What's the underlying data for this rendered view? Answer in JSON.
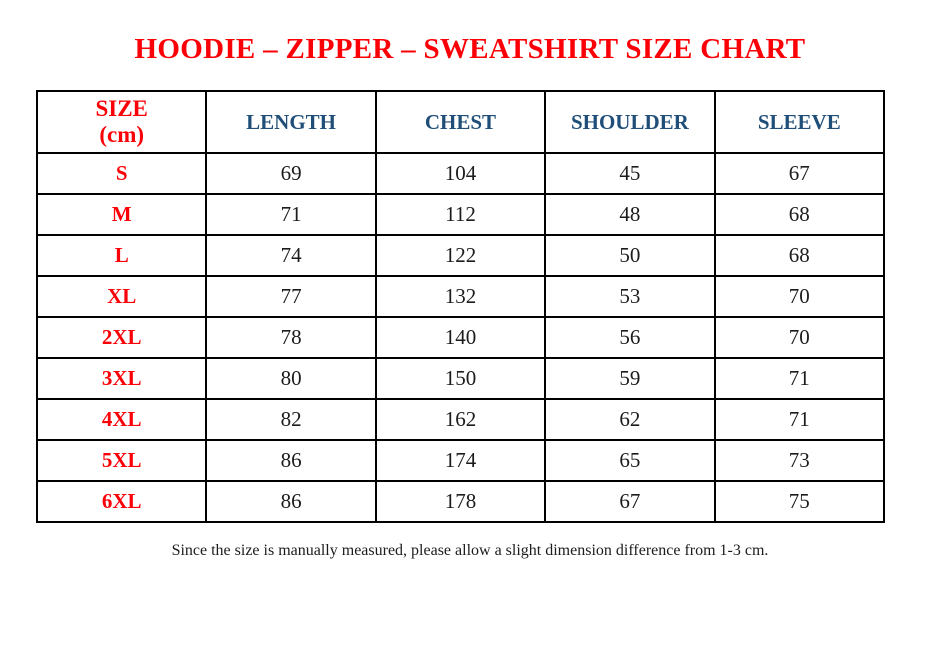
{
  "page": {
    "stray_mark": "."
  },
  "title": "HOODIE – ZIPPER – SWEATSHIRT SIZE CHART",
  "table": {
    "size_header": {
      "line1": "SIZE",
      "line2": "(cm)"
    },
    "columns": [
      "LENGTH",
      "CHEST",
      "SHOULDER",
      "SLEEVE"
    ],
    "rows": [
      {
        "size": "S",
        "values": [
          "69",
          "104",
          "45",
          "67"
        ]
      },
      {
        "size": "M",
        "values": [
          "71",
          "112",
          "48",
          "68"
        ]
      },
      {
        "size": "L",
        "values": [
          "74",
          "122",
          "50",
          "68"
        ]
      },
      {
        "size": "XL",
        "values": [
          "77",
          "132",
          "53",
          "70"
        ]
      },
      {
        "size": "2XL",
        "values": [
          "78",
          "140",
          "56",
          "70"
        ]
      },
      {
        "size": "3XL",
        "values": [
          "80",
          "150",
          "59",
          "71"
        ]
      },
      {
        "size": "4XL",
        "values": [
          "82",
          "162",
          "62",
          "71"
        ]
      },
      {
        "size": "5XL",
        "values": [
          "86",
          "174",
          "65",
          "73"
        ]
      },
      {
        "size": "6XL",
        "values": [
          "86",
          "178",
          "67",
          "75"
        ]
      }
    ]
  },
  "footer_note": "Since the size is manually measured, please allow a slight dimension difference from 1-3 cm.",
  "colors": {
    "accent_red": "#fb0007",
    "header_blue": "#1f4e79",
    "body_text": "#1c1c1c",
    "border": "#000000"
  }
}
